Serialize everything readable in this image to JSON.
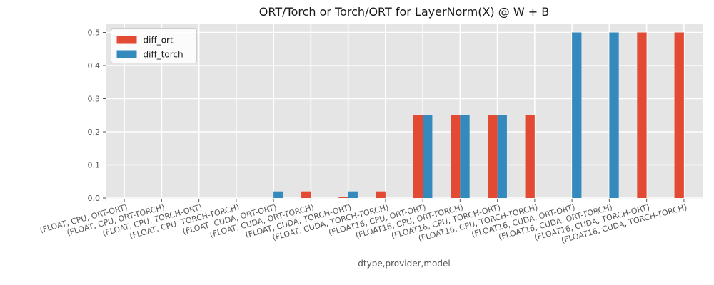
{
  "figure": {
    "background": "#ffffff",
    "plot_background": "#e5e5e5",
    "grid_color": "#ffffff",
    "tick_color": "#555555",
    "title_color": "#1a1a1a"
  },
  "chart_data": {
    "type": "bar",
    "title": "ORT/Torch or Torch/ORT for LayerNorm(X) @ W + B",
    "xlabel": "dtype,provider,model",
    "ylabel": "",
    "categories": [
      "(FLOAT, CPU, ORT-ORT)",
      "(FLOAT, CPU, ORT-TORCH)",
      "(FLOAT, CPU, TORCH-ORT)",
      "(FLOAT, CPU, TORCH-TORCH)",
      "(FLOAT, CUDA, ORT-ORT)",
      "(FLOAT, CUDA, ORT-TORCH)",
      "(FLOAT, CUDA, TORCH-ORT)",
      "(FLOAT, CUDA, TORCH-TORCH)",
      "(FLOAT16, CPU, ORT-ORT)",
      "(FLOAT16, CPU, ORT-TORCH)",
      "(FLOAT16, CPU, TORCH-ORT)",
      "(FLOAT16, CPU, TORCH-TORCH)",
      "(FLOAT16, CUDA, ORT-ORT)",
      "(FLOAT16, CUDA, ORT-TORCH)",
      "(FLOAT16, CUDA, TORCH-ORT)",
      "(FLOAT16, CUDA, TORCH-TORCH)"
    ],
    "series": [
      {
        "name": "diff_ort",
        "color": "#e24a33",
        "values": [
          0,
          0,
          0,
          0,
          0,
          0.02,
          0.004,
          0.02,
          0.25,
          0.25,
          0.25,
          0.25,
          0,
          0,
          0.5,
          0.5
        ]
      },
      {
        "name": "diff_torch",
        "color": "#348abd",
        "values": [
          0,
          0,
          0,
          0,
          0.02,
          0,
          0.02,
          0,
          0.25,
          0.25,
          0.25,
          0,
          0.5,
          0.5,
          0,
          0
        ]
      }
    ],
    "yticks": [
      0.0,
      0.1,
      0.2,
      0.3,
      0.4,
      0.5
    ],
    "ytick_labels": [
      "0.0",
      "0.1",
      "0.2",
      "0.3",
      "0.4",
      "0.5"
    ],
    "ylim": [
      0,
      0.525
    ],
    "x_tick_rotation": 15,
    "grid": true,
    "legend": {
      "position": "upper-left",
      "entries": [
        "diff_ort",
        "diff_torch"
      ]
    }
  }
}
